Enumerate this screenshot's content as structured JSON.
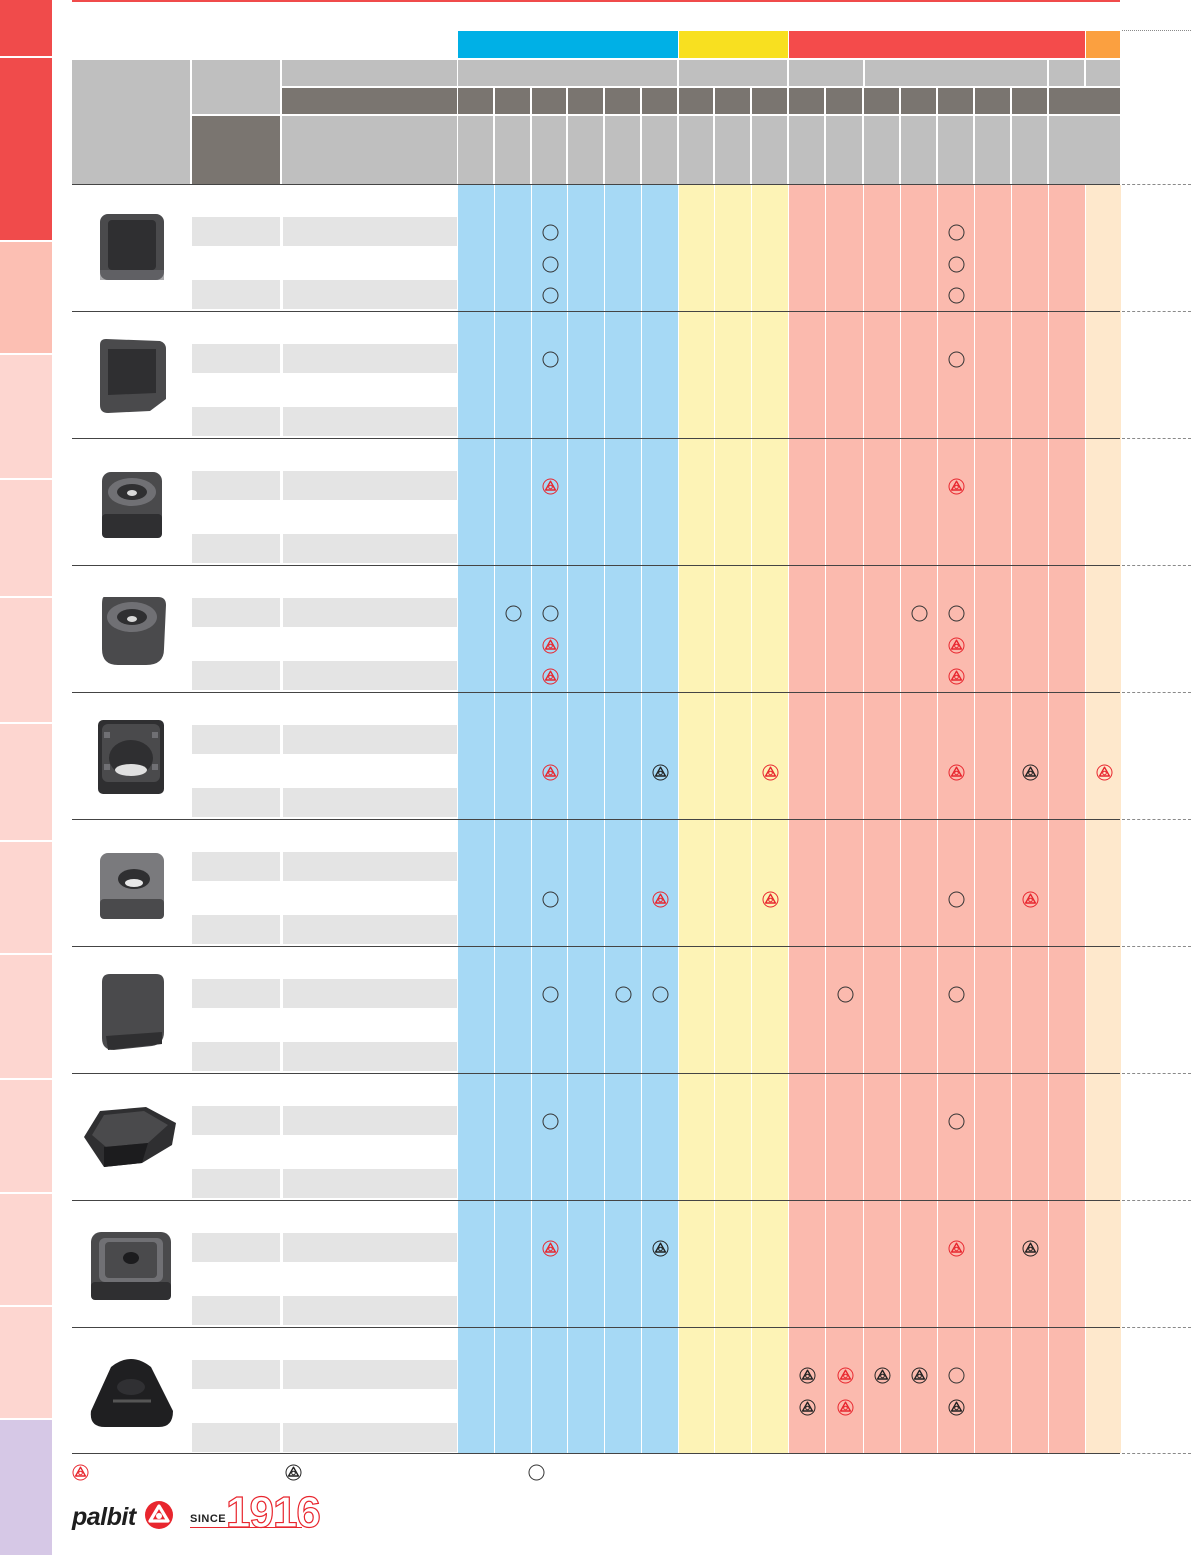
{
  "brand": {
    "name": "palbit",
    "since_label": "SINCE",
    "year": "1916"
  },
  "colors": {
    "red_accent": "#f04b4b",
    "iso_p": "#00b0e6",
    "iso_m": "#f8e020",
    "iso_k": "#f44b4b",
    "iso_n": "#fba040",
    "p_zone": "#a6d9f5",
    "m_zone": "#fdf3b6",
    "k_zone": "#fbbaae",
    "n_zone": "#fee8cc",
    "header_grey": "#bfbfbf",
    "header_dark": "#7a7570",
    "row_shade": "#e4e4e4"
  },
  "sidebar": {
    "tabs": [
      {
        "name": "tab-1",
        "color": "#f04b4b"
      },
      {
        "name": "tab-2",
        "color": "#f04b4b"
      },
      {
        "name": "tab-3",
        "color": "#fcbfb3"
      },
      {
        "name": "tab-4",
        "color": "#fdd6d0"
      },
      {
        "name": "tab-5",
        "color": "#fdd6d0"
      },
      {
        "name": "tab-6",
        "color": "#fdd6d0"
      },
      {
        "name": "tab-7",
        "color": "#fdd6d0"
      },
      {
        "name": "tab-8",
        "color": "#fdd6d0"
      },
      {
        "name": "tab-9",
        "color": "#fdd6d0"
      },
      {
        "name": "tab-10",
        "color": "#fdd6d0"
      },
      {
        "name": "tab-11",
        "color": "#fdd6d0"
      },
      {
        "name": "tab-12",
        "color": "#fdd6d0"
      },
      {
        "name": "tab-13",
        "color": "#d6c8e6"
      }
    ]
  },
  "legend": [
    {
      "symbol": "red-triangle"
    },
    {
      "symbol": "black-triangle"
    },
    {
      "symbol": "circle"
    }
  ],
  "insert_rows": [
    {
      "index": 1,
      "shape": "square-chamfer",
      "marks": [
        {
          "col": 2,
          "slot": 0,
          "sym": "circle"
        },
        {
          "col": 2,
          "slot": 1,
          "sym": "circle"
        },
        {
          "col": 2,
          "slot": 2,
          "sym": "circle"
        },
        {
          "col": 13,
          "slot": 0,
          "sym": "circle"
        },
        {
          "col": 13,
          "slot": 1,
          "sym": "circle"
        },
        {
          "col": 13,
          "slot": 2,
          "sym": "circle"
        }
      ]
    },
    {
      "index": 2,
      "shape": "square-wiper",
      "marks": [
        {
          "col": 2,
          "slot": 0,
          "sym": "circle"
        },
        {
          "col": 13,
          "slot": 0,
          "sym": "circle"
        }
      ]
    },
    {
      "index": 3,
      "shape": "square-chipbreaker",
      "marks": [
        {
          "col": 2,
          "slot": 0,
          "sym": "red"
        },
        {
          "col": 13,
          "slot": 0,
          "sym": "red"
        }
      ]
    },
    {
      "index": 4,
      "shape": "square-chipbreaker-2",
      "marks": [
        {
          "col": 1,
          "slot": 0,
          "sym": "circle"
        },
        {
          "col": 2,
          "slot": 0,
          "sym": "circle"
        },
        {
          "col": 2,
          "slot": 1,
          "sym": "red"
        },
        {
          "col": 2,
          "slot": 2,
          "sym": "red"
        },
        {
          "col": 12,
          "slot": 0,
          "sym": "circle"
        },
        {
          "col": 13,
          "slot": 0,
          "sym": "circle"
        },
        {
          "col": 13,
          "slot": 1,
          "sym": "red"
        },
        {
          "col": 13,
          "slot": 2,
          "sym": "red"
        }
      ]
    },
    {
      "index": 5,
      "shape": "square-molded",
      "marks": [
        {
          "col": 2,
          "slot": 1,
          "sym": "red"
        },
        {
          "col": 5,
          "slot": 1,
          "sym": "black"
        },
        {
          "col": 8,
          "slot": 1,
          "sym": "red"
        },
        {
          "col": 13,
          "slot": 1,
          "sym": "red"
        },
        {
          "col": 15,
          "slot": 1,
          "sym": "black"
        },
        {
          "col": 17,
          "slot": 1,
          "sym": "red"
        }
      ]
    },
    {
      "index": 6,
      "shape": "square-hole",
      "marks": [
        {
          "col": 2,
          "slot": 1,
          "sym": "circle"
        },
        {
          "col": 5,
          "slot": 1,
          "sym": "red"
        },
        {
          "col": 8,
          "slot": 1,
          "sym": "red"
        },
        {
          "col": 13,
          "slot": 1,
          "sym": "circle"
        },
        {
          "col": 15,
          "slot": 1,
          "sym": "red"
        }
      ]
    },
    {
      "index": 7,
      "shape": "square-plain",
      "marks": [
        {
          "col": 2,
          "slot": 0,
          "sym": "circle"
        },
        {
          "col": 4,
          "slot": 0,
          "sym": "circle"
        },
        {
          "col": 5,
          "slot": 0,
          "sym": "circle"
        },
        {
          "col": 10,
          "slot": 0,
          "sym": "circle"
        },
        {
          "col": 13,
          "slot": 0,
          "sym": "circle"
        }
      ]
    },
    {
      "index": 8,
      "shape": "hexagon-flat",
      "marks": [
        {
          "col": 2,
          "slot": 0,
          "sym": "circle"
        },
        {
          "col": 13,
          "slot": 0,
          "sym": "circle"
        }
      ]
    },
    {
      "index": 9,
      "shape": "square-screw",
      "marks": [
        {
          "col": 2,
          "slot": 0,
          "sym": "red"
        },
        {
          "col": 5,
          "slot": 0,
          "sym": "black"
        },
        {
          "col": 13,
          "slot": 0,
          "sym": "red"
        },
        {
          "col": 15,
          "slot": 0,
          "sym": "black"
        }
      ]
    },
    {
      "index": 10,
      "shape": "trigon",
      "marks": [
        {
          "col": 9,
          "slot": 0,
          "sym": "black"
        },
        {
          "col": 10,
          "slot": 0,
          "sym": "red"
        },
        {
          "col": 11,
          "slot": 0,
          "sym": "black"
        },
        {
          "col": 12,
          "slot": 0,
          "sym": "black"
        },
        {
          "col": 13,
          "slot": 0,
          "sym": "circle"
        },
        {
          "col": 9,
          "slot": 1,
          "sym": "black"
        },
        {
          "col": 10,
          "slot": 1,
          "sym": "red"
        },
        {
          "col": 13,
          "slot": 1,
          "sym": "black"
        }
      ]
    }
  ]
}
